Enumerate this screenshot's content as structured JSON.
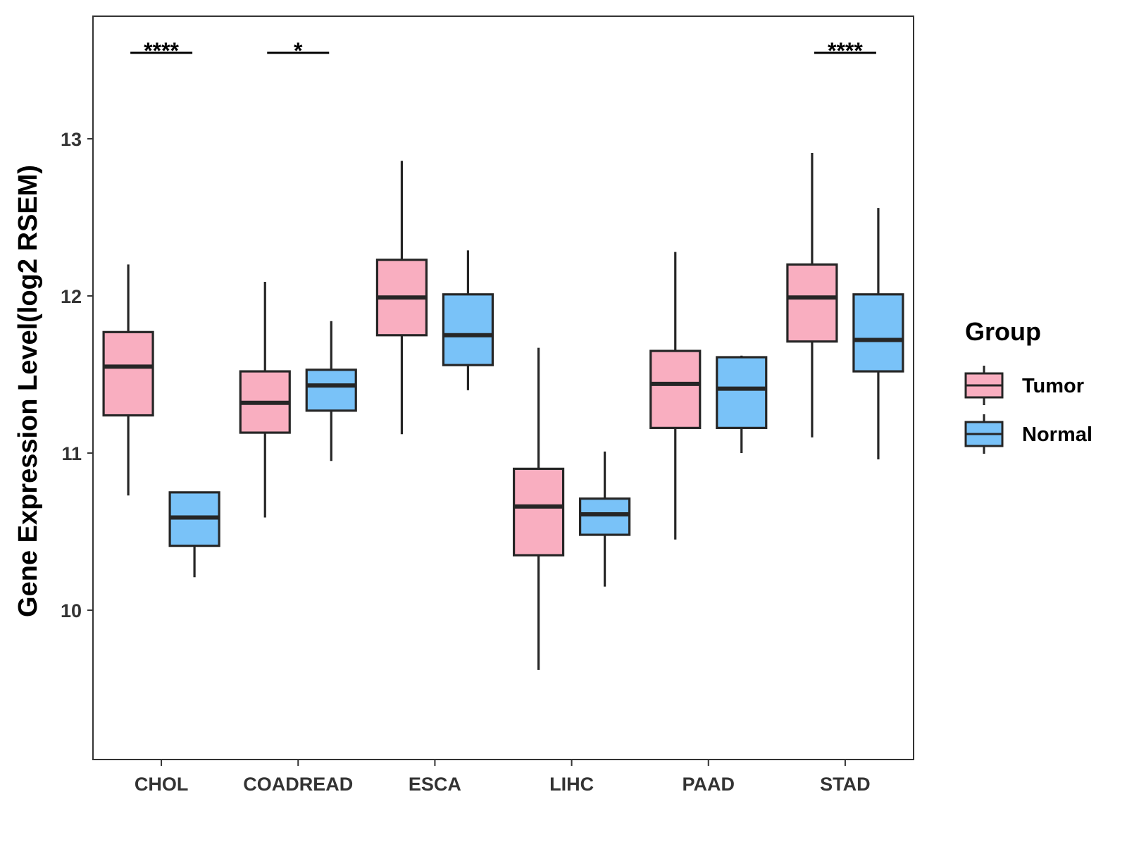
{
  "chart_data": {
    "type": "boxplot",
    "ylabel": "Gene Expression Level(log2 RSEM)",
    "xlabel": "",
    "ylim": [
      9.05,
      13.78
    ],
    "yticks": [
      "10",
      "11",
      "12",
      "13"
    ],
    "categories": [
      "CHOL",
      "COADREAD",
      "ESCA",
      "LIHC",
      "PAAD",
      "STAD"
    ],
    "grid": false,
    "legend": {
      "title": "Group",
      "position": "right",
      "entries": [
        "Tumor",
        "Normal"
      ]
    },
    "colors": {
      "Tumor": "#F9AEC0",
      "Normal": "#79C2F8",
      "outline": "#262626"
    },
    "series": [
      {
        "name": "Tumor",
        "boxes": [
          {
            "min": 10.73,
            "q1": 11.24,
            "median": 11.55,
            "q3": 11.77,
            "max": 12.2
          },
          {
            "min": 10.59,
            "q1": 11.13,
            "median": 11.32,
            "q3": 11.52,
            "max": 12.09
          },
          {
            "min": 11.12,
            "q1": 11.75,
            "median": 11.99,
            "q3": 12.23,
            "max": 12.86
          },
          {
            "min": 9.62,
            "q1": 10.35,
            "median": 10.66,
            "q3": 10.9,
            "max": 11.67
          },
          {
            "min": 10.45,
            "q1": 11.16,
            "median": 11.44,
            "q3": 11.65,
            "max": 12.28
          },
          {
            "min": 11.1,
            "q1": 11.71,
            "median": 11.99,
            "q3": 12.2,
            "max": 12.91
          }
        ]
      },
      {
        "name": "Normal",
        "boxes": [
          {
            "min": 10.21,
            "q1": 10.41,
            "median": 10.59,
            "q3": 10.75,
            "max": 10.75
          },
          {
            "min": 10.95,
            "q1": 11.27,
            "median": 11.43,
            "q3": 11.53,
            "max": 11.84
          },
          {
            "min": 11.4,
            "q1": 11.56,
            "median": 11.75,
            "q3": 12.01,
            "max": 12.29
          },
          {
            "min": 10.15,
            "q1": 10.48,
            "median": 10.61,
            "q3": 10.71,
            "max": 11.01
          },
          {
            "min": 11.0,
            "q1": 11.16,
            "median": 11.41,
            "q3": 11.61,
            "max": 11.62
          },
          {
            "min": 10.96,
            "q1": 11.52,
            "median": 11.72,
            "q3": 12.01,
            "max": 12.56
          }
        ]
      }
    ],
    "significance": [
      {
        "category": "CHOL",
        "label": "****"
      },
      {
        "category": "COADREAD",
        "label": "*"
      },
      {
        "category": "STAD",
        "label": "****"
      }
    ]
  }
}
